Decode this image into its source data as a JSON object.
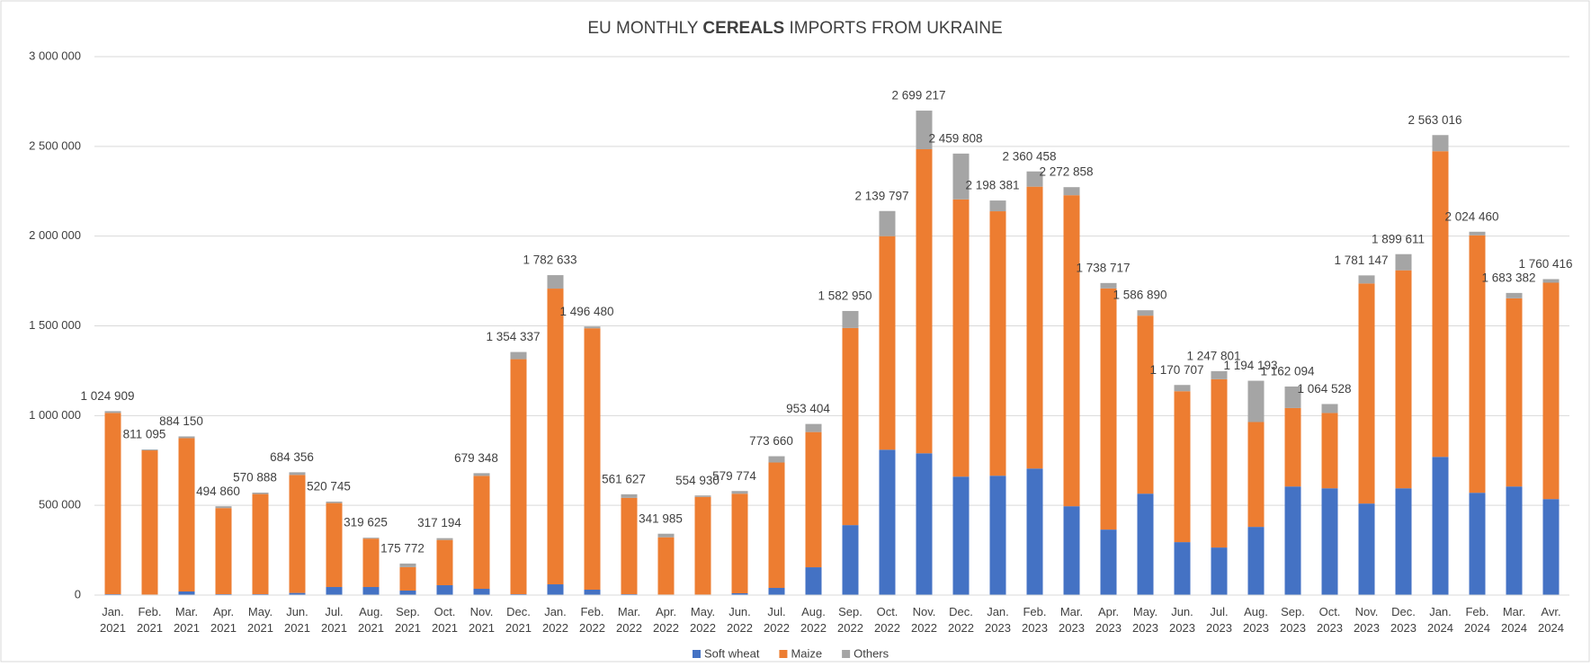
{
  "chart_data": {
    "type": "stacked_bar",
    "title": [
      "EU MONTHLY ",
      "CEREALS",
      " IMPORTS FROM UKRAINE"
    ],
    "categories": [
      "Jan. 2021",
      "Feb. 2021",
      "Mar. 2021",
      "Apr. 2021",
      "May. 2021",
      "Jun. 2021",
      "Jul. 2021",
      "Aug. 2021",
      "Sep. 2021",
      "Oct. 2021",
      "Nov. 2021",
      "Dec. 2021",
      "Jan. 2022",
      "Feb. 2022",
      "Mar. 2022",
      "Apr. 2022",
      "May. 2022",
      "Jun. 2022",
      "Jul. 2022",
      "Aug. 2022",
      "Sep. 2022",
      "Oct. 2022",
      "Nov. 2022",
      "Dec. 2022",
      "Jan. 2023",
      "Feb. 2023",
      "Mar. 2023",
      "Apr. 2023",
      "May. 2023",
      "Jun. 2023",
      "Jul. 2023",
      "Aug. 2023",
      "Sep. 2023",
      "Oct. 2023",
      "Nov. 2023",
      "Dec. 2023",
      "Jan. 2024",
      "Feb. 2024",
      "Mar. 2024",
      "Avr. 2024"
    ],
    "series": [
      {
        "name": "Soft wheat",
        "color": "#4472c4",
        "values": [
          5000,
          3000,
          20000,
          5000,
          5000,
          12000,
          45000,
          45000,
          25000,
          55000,
          35000,
          5000,
          60000,
          30000,
          5000,
          3000,
          3000,
          10000,
          40000,
          155000,
          390000,
          810000,
          790000,
          660000,
          665000,
          705000,
          495000,
          365000,
          565000,
          295000,
          265000,
          380000,
          605000,
          595000,
          510000,
          595000,
          770000,
          570000,
          605000,
          535000
        ]
      },
      {
        "name": "Maize",
        "color": "#ed7d31",
        "values": [
          1009909,
          803095,
          854150,
          479860,
          557888,
          657356,
          467745,
          269625,
          130772,
          252194,
          629348,
          1309337,
          1647633,
          1456480,
          536627,
          318985,
          543930,
          554774,
          698660,
          753404,
          1097950,
          1189797,
          1694217,
          1544808,
          1473381,
          1570458,
          1732858,
          1343717,
          991890,
          840707,
          937801,
          584193,
          437094,
          419528,
          1226147,
          1214611,
          1703016,
          1434460,
          1048382,
          1205416
        ]
      },
      {
        "name": "Others",
        "color": "#a5a5a5",
        "values": [
          10000,
          5000,
          10000,
          10000,
          8000,
          15000,
          8000,
          5000,
          20000,
          10000,
          15000,
          40000,
          75000,
          10000,
          20000,
          20000,
          8000,
          15000,
          35000,
          45000,
          95000,
          140000,
          215000,
          255000,
          60000,
          85000,
          45000,
          30000,
          30000,
          35000,
          45000,
          230000,
          120000,
          50000,
          45000,
          90000,
          90000,
          20000,
          30000,
          20000
        ]
      }
    ],
    "totals": [
      1024909,
      811095,
      884150,
      494860,
      570888,
      684356,
      520745,
      319625,
      175772,
      317194,
      679348,
      1354337,
      1782633,
      1496480,
      561627,
      341985,
      554930,
      579774,
      773660,
      953404,
      1582950,
      2139797,
      2699217,
      2459808,
      2198381,
      2360458,
      2272858,
      1738717,
      1586890,
      1170707,
      1247801,
      1194193,
      1162094,
      1064528,
      1781147,
      1899611,
      2563016,
      2024460,
      1683382,
      1760416
    ],
    "total_labels": [
      "1 024 909",
      "811 095",
      "884 150",
      "494 860",
      "570 888",
      "684 356",
      "520 745",
      "319 625",
      "175 772",
      "317 194",
      "679 348",
      "1 354 337",
      "1 782 633",
      "1 496 480",
      "561 627",
      "341 985",
      "554 930",
      "579 774",
      "773 660",
      "953 404",
      "1 582 950",
      "2 139 797",
      "2 699 217",
      "2 459 808",
      "2 198 381",
      "2 360 458",
      "2 272 858",
      "1 738 717",
      "1 586 890",
      "1 170 707",
      "1 247 801",
      "1 194 193",
      "1 162 094",
      "1 064 528",
      "1 781 147",
      "1 899 611",
      "2 563 016",
      "2 024 460",
      "1 683 382",
      "1 760 416"
    ],
    "ylim": [
      0,
      3000000
    ],
    "yticks": [
      {
        "value": 0,
        "label": "0"
      },
      {
        "value": 500000,
        "label": "500 000"
      },
      {
        "value": 1000000,
        "label": "1 000 000"
      },
      {
        "value": 1500000,
        "label": "1 500 000"
      },
      {
        "value": 2000000,
        "label": "2 000 000"
      },
      {
        "value": 2500000,
        "label": "2 500 000"
      },
      {
        "value": 3000000,
        "label": "3 000 000"
      }
    ],
    "grid": true,
    "legend": "bottom"
  }
}
